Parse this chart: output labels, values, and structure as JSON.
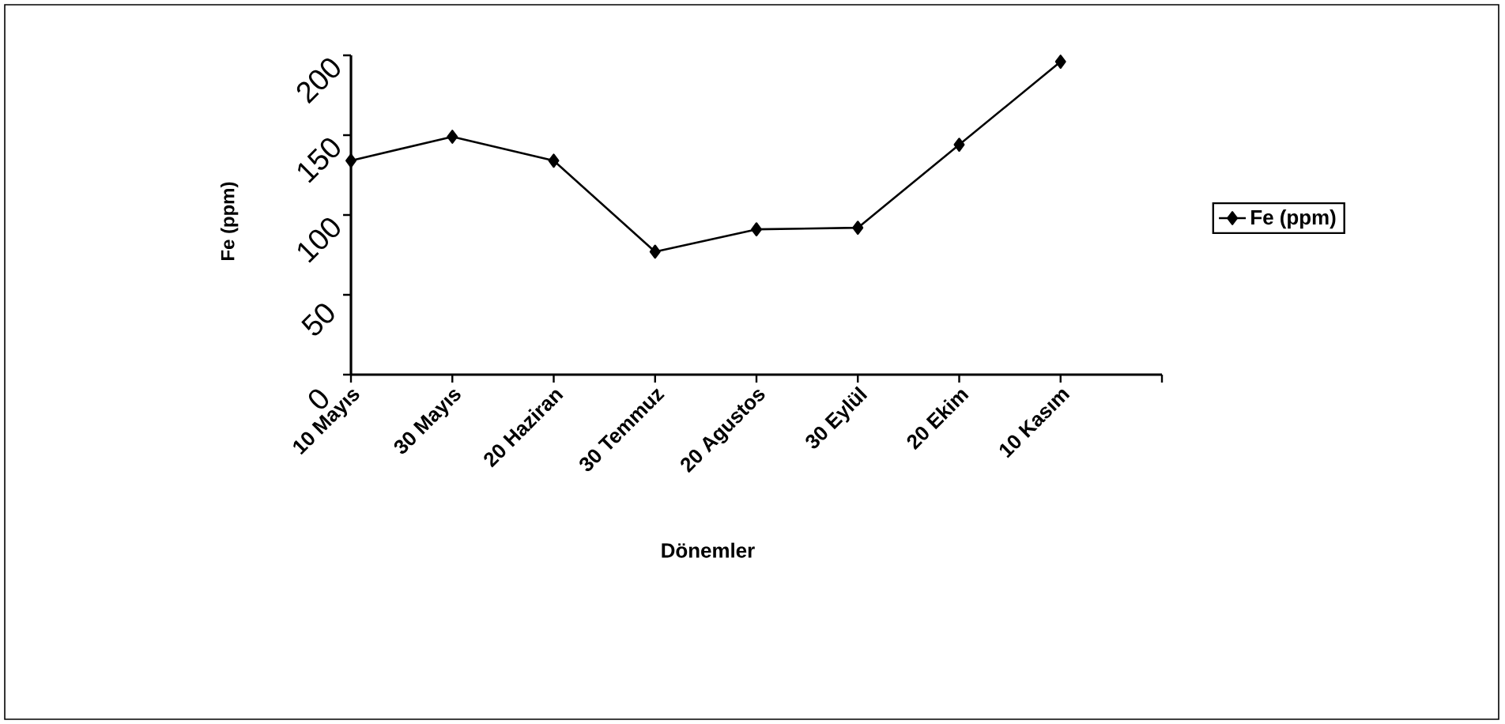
{
  "chart_data": {
    "type": "line",
    "xlabel": "Dönemler",
    "ylabel": "Fe  (ppm)",
    "categories": [
      "10 Mayıs",
      "30 Mayıs",
      "20 Haziran",
      "30 Temmuz",
      "20 Agustos",
      "30 Eylül",
      "20 Ekim",
      "10 Kasım",
      null
    ],
    "series": [
      {
        "name": "Fe (ppm)",
        "color": "#000000",
        "values": [
          134,
          149,
          134,
          77,
          91,
          92,
          144,
          196,
          null
        ]
      }
    ],
    "ylim": [
      0,
      200
    ],
    "yticks": [
      0,
      50,
      100,
      150,
      200
    ],
    "marker": "diamond",
    "legend": "right",
    "grid": false
  }
}
